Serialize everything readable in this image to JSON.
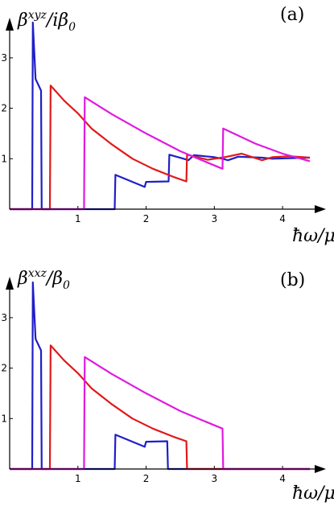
{
  "chart_data": [
    {
      "type": "line",
      "panel_label": "(a)",
      "ylabel_base": "β",
      "ylabel_sup": "xyz",
      "ylabel_mid": "/iβ",
      "ylabel_sub": "0",
      "xlabel_main": "ħω/μ",
      "xlim": [
        0,
        4.4
      ],
      "ylim": [
        0,
        3.7
      ],
      "xticks": [
        "1",
        "2",
        "3",
        "4"
      ],
      "yticks": [
        "1",
        "2",
        "3"
      ],
      "series": [
        {
          "color": "#1f1fc8",
          "points": [
            [
              0,
              0
            ],
            [
              0.33,
              0
            ],
            [
              0.34,
              3.7
            ],
            [
              0.38,
              2.58
            ],
            [
              0.46,
              2.35
            ],
            [
              0.47,
              0
            ],
            [
              1.54,
              0
            ],
            [
              1.55,
              0.68
            ],
            [
              1.98,
              0.44
            ],
            [
              2.0,
              0.54
            ],
            [
              2.33,
              0.55
            ],
            [
              2.34,
              1.08
            ],
            [
              2.55,
              1.0
            ],
            [
              2.62,
              0.97
            ],
            [
              2.7,
              1.07
            ],
            [
              3.0,
              1.03
            ],
            [
              3.12,
              1.0
            ],
            [
              3.2,
              0.97
            ],
            [
              3.35,
              1.04
            ],
            [
              3.7,
              1.02
            ],
            [
              3.85,
              1.0
            ],
            [
              4.4,
              1.02
            ]
          ]
        },
        {
          "color": "#e01a1a",
          "points": [
            [
              0,
              0
            ],
            [
              0.59,
              0
            ],
            [
              0.6,
              2.45
            ],
            [
              0.8,
              2.15
            ],
            [
              1.0,
              1.9
            ],
            [
              1.2,
              1.6
            ],
            [
              1.5,
              1.28
            ],
            [
              1.8,
              1.0
            ],
            [
              2.1,
              0.8
            ],
            [
              2.4,
              0.64
            ],
            [
              2.59,
              0.55
            ],
            [
              2.6,
              1.08
            ],
            [
              2.9,
              0.98
            ],
            [
              3.15,
              1.03
            ],
            [
              3.4,
              1.1
            ],
            [
              3.7,
              0.97
            ],
            [
              3.85,
              1.03
            ],
            [
              4.1,
              1.05
            ],
            [
              4.4,
              1.02
            ]
          ]
        },
        {
          "color": "#e01ae0",
          "points": [
            [
              0,
              0
            ],
            [
              1.09,
              0
            ],
            [
              1.1,
              2.22
            ],
            [
              1.5,
              1.88
            ],
            [
              2.0,
              1.5
            ],
            [
              2.5,
              1.15
            ],
            [
              2.8,
              0.98
            ],
            [
              3.12,
              0.8
            ],
            [
              3.13,
              1.6
            ],
            [
              3.6,
              1.3
            ],
            [
              4.0,
              1.1
            ],
            [
              4.4,
              0.95
            ]
          ]
        }
      ]
    },
    {
      "type": "line",
      "panel_label": "(b)",
      "ylabel_base": "β",
      "ylabel_sup": "xxz",
      "ylabel_mid": "/β",
      "ylabel_sub": "0",
      "xlabel_main": "ħω/μ",
      "xlim": [
        0,
        4.4
      ],
      "ylim": [
        0,
        3.7
      ],
      "xticks": [
        "1",
        "2",
        "3",
        "4"
      ],
      "yticks": [
        "1",
        "2",
        "3"
      ],
      "series": [
        {
          "color": "#1f1fc8",
          "points": [
            [
              0,
              0
            ],
            [
              0.33,
              0
            ],
            [
              0.34,
              3.7
            ],
            [
              0.38,
              2.58
            ],
            [
              0.46,
              2.35
            ],
            [
              0.47,
              0
            ],
            [
              1.54,
              0
            ],
            [
              1.55,
              0.68
            ],
            [
              1.98,
              0.44
            ],
            [
              2.0,
              0.54
            ],
            [
              2.31,
              0.55
            ],
            [
              2.32,
              0
            ],
            [
              4.4,
              0
            ]
          ]
        },
        {
          "color": "#e01a1a",
          "points": [
            [
              0,
              0
            ],
            [
              0.59,
              0
            ],
            [
              0.6,
              2.45
            ],
            [
              0.8,
              2.15
            ],
            [
              1.0,
              1.9
            ],
            [
              1.2,
              1.6
            ],
            [
              1.5,
              1.28
            ],
            [
              1.8,
              1.0
            ],
            [
              2.1,
              0.8
            ],
            [
              2.4,
              0.64
            ],
            [
              2.59,
              0.55
            ],
            [
              2.6,
              0
            ],
            [
              4.4,
              0
            ]
          ]
        },
        {
          "color": "#e01ae0",
          "points": [
            [
              0,
              0
            ],
            [
              1.09,
              0
            ],
            [
              1.1,
              2.22
            ],
            [
              1.5,
              1.88
            ],
            [
              2.0,
              1.5
            ],
            [
              2.5,
              1.15
            ],
            [
              2.8,
              0.98
            ],
            [
              3.12,
              0.8
            ],
            [
              3.13,
              0
            ],
            [
              4.4,
              0
            ]
          ]
        }
      ]
    }
  ]
}
